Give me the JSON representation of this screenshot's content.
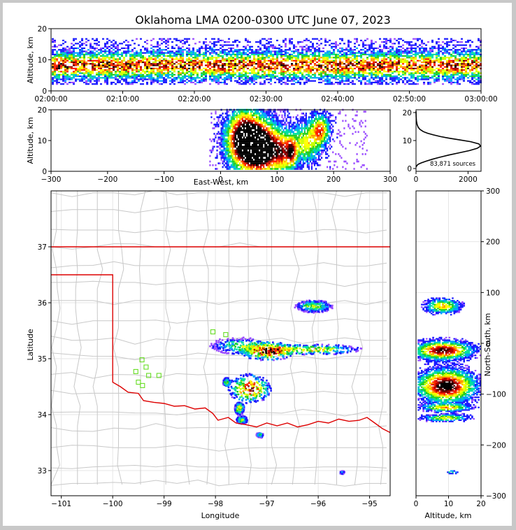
{
  "title": "Oklahoma LMA 0200-0300 UTC June 07, 2023",
  "colors": {
    "state_border": "#dd0000",
    "county_lines": "#c8c8c8",
    "stations": "#66dd22",
    "hist_line": "#000000"
  },
  "colormap": [
    "#ffffff",
    "#9a4dff",
    "#1a1aff",
    "#00a0ff",
    "#00e0a0",
    "#22cc22",
    "#c8ff00",
    "#ffff00",
    "#ff9900",
    "#ff2200",
    "#b00000",
    "#500000",
    "#000000"
  ],
  "chart_data": [
    {
      "id": "time_altitude",
      "type": "heatmap",
      "title": "",
      "xlabel": "",
      "ylabel": "Altitude, km",
      "x_ticks": [
        "02:00:00",
        "02:10:00",
        "02:20:00",
        "02:30:00",
        "02:40:00",
        "02:50:00",
        "03:00:00"
      ],
      "y_ticks": [
        "0",
        "10",
        "20"
      ],
      "xlim": [
        "02:00:00",
        "03:00:00"
      ],
      "ylim": [
        0,
        20
      ],
      "note": "continuous source band roughly 2-16 km, densest 5-11 km"
    },
    {
      "id": "ew_altitude",
      "type": "heatmap",
      "xlabel": "East-West, km",
      "ylabel": "Altitude, km",
      "x_ticks": [
        "−300",
        "−200",
        "−100",
        "0",
        "100",
        "200",
        "300"
      ],
      "y_ticks": [
        "0",
        "10",
        "20"
      ],
      "xlim": [
        -300,
        300
      ],
      "ylim": [
        0,
        20
      ],
      "clusters": [
        {
          "x": 50,
          "z": 8,
          "wx": 22,
          "wz": 5,
          "peak": 12
        },
        {
          "x": 75,
          "z": 7,
          "wx": 20,
          "wz": 5,
          "peak": 11
        },
        {
          "x": 40,
          "z": 12,
          "wx": 18,
          "wz": 5,
          "peak": 8
        },
        {
          "x": 110,
          "z": 6,
          "wx": 12,
          "wz": 4,
          "peak": 7
        },
        {
          "x": 150,
          "z": 9,
          "wx": 15,
          "wz": 4,
          "peak": 6
        },
        {
          "x": 175,
          "z": 13,
          "wx": 10,
          "wz": 3,
          "peak": 8
        },
        {
          "x": 125,
          "z": 6,
          "wx": 6,
          "wz": 3,
          "peak": 7
        }
      ]
    },
    {
      "id": "altitude_histogram",
      "type": "line",
      "xlabel": "",
      "ylabel": "",
      "x_ticks": [
        "0",
        "2000"
      ],
      "y_ticks": [
        "0",
        "10",
        "20"
      ],
      "xlim": [
        0,
        2500
      ],
      "ylim": [
        -1,
        21
      ],
      "annotation": "83,871 sources",
      "x": [
        0,
        30,
        80,
        200,
        380,
        620,
        900,
        1250,
        1650,
        2050,
        2350,
        2480,
        2420,
        2100,
        1700,
        1300,
        950,
        680,
        450,
        280,
        150,
        80,
        40,
        15,
        5,
        0
      ],
      "y": [
        0.5,
        1,
        1.5,
        2,
        2.6,
        3.3,
        4,
        4.8,
        5.6,
        6.4,
        7.2,
        8,
        8.8,
        9.6,
        10.2,
        10.8,
        11.4,
        12,
        12.6,
        13.2,
        14,
        14.8,
        15.8,
        17,
        18.5,
        20.5
      ]
    },
    {
      "id": "plan_map",
      "type": "heatmap",
      "xlabel": "Longitude",
      "ylabel": "Latitude",
      "x_ticks": [
        "−101",
        "−100",
        "−99",
        "−98",
        "−97",
        "−96",
        "−95"
      ],
      "y_ticks": [
        "33",
        "34",
        "35",
        "36",
        "37"
      ],
      "xlim": [
        -101.2,
        -94.6
      ],
      "ylim": [
        32.55,
        38.0
      ],
      "clusters": [
        {
          "lon": -97.0,
          "lat": 35.15,
          "wlon": 0.28,
          "wlat": 0.09,
          "peak": 11
        },
        {
          "lon": -96.1,
          "lat": 35.18,
          "wlon": 0.5,
          "wlat": 0.05,
          "peak": 8
        },
        {
          "lon": -97.6,
          "lat": 35.25,
          "wlon": 0.3,
          "wlat": 0.08,
          "peak": 5
        },
        {
          "lon": -97.35,
          "lat": 34.48,
          "wlon": 0.22,
          "wlat": 0.14,
          "peak": 11
        },
        {
          "lon": -96.1,
          "lat": 35.95,
          "wlon": 0.2,
          "wlat": 0.06,
          "peak": 7
        },
        {
          "lon": -97.55,
          "lat": 34.12,
          "wlon": 0.05,
          "wlat": 0.06,
          "peak": 8
        },
        {
          "lon": -97.5,
          "lat": 33.92,
          "wlon": 0.06,
          "wlat": 0.04,
          "peak": 7
        },
        {
          "lon": -97.8,
          "lat": 34.6,
          "wlon": 0.04,
          "wlat": 0.04,
          "peak": 6
        },
        {
          "lon": -97.15,
          "lat": 33.65,
          "wlon": 0.04,
          "wlat": 0.03,
          "peak": 5
        },
        {
          "lon": -95.55,
          "lat": 32.98,
          "wlon": 0.03,
          "wlat": 0.02,
          "peak": 4
        }
      ],
      "stations": [
        {
          "lon": -98.05,
          "lat": 35.48
        },
        {
          "lon": -97.8,
          "lat": 35.43
        },
        {
          "lon": -99.43,
          "lat": 34.98
        },
        {
          "lon": -99.35,
          "lat": 34.85
        },
        {
          "lon": -99.55,
          "lat": 34.77
        },
        {
          "lon": -99.3,
          "lat": 34.7
        },
        {
          "lon": -99.1,
          "lat": 34.7
        },
        {
          "lon": -99.5,
          "lat": 34.58
        },
        {
          "lon": -99.42,
          "lat": 34.52
        }
      ],
      "state_border": [
        [
          -101.2,
          37
        ],
        [
          -94.6,
          37
        ],
        [
          -101.2,
          36.5
        ],
        [
          -100,
          36.5
        ],
        [
          -100,
          34.58
        ],
        [
          -99.85,
          34.5
        ],
        [
          -99.7,
          34.4
        ],
        [
          -99.5,
          34.38
        ],
        [
          -99.4,
          34.25
        ],
        [
          -99.2,
          34.22
        ],
        [
          -99.0,
          34.2
        ],
        [
          -98.8,
          34.15
        ],
        [
          -98.6,
          34.16
        ],
        [
          -98.4,
          34.1
        ],
        [
          -98.2,
          34.12
        ],
        [
          -98.05,
          34.02
        ],
        [
          -97.95,
          33.9
        ],
        [
          -97.75,
          33.95
        ],
        [
          -97.6,
          33.85
        ],
        [
          -97.4,
          33.82
        ],
        [
          -97.2,
          33.78
        ],
        [
          -97.0,
          33.85
        ],
        [
          -96.8,
          33.8
        ],
        [
          -96.6,
          33.85
        ],
        [
          -96.4,
          33.78
        ],
        [
          -96.2,
          33.82
        ],
        [
          -96.0,
          33.88
        ],
        [
          -95.8,
          33.85
        ],
        [
          -95.6,
          33.92
        ],
        [
          -95.4,
          33.88
        ],
        [
          -95.2,
          33.9
        ],
        [
          -95.05,
          33.95
        ],
        [
          -94.9,
          33.85
        ],
        [
          -94.75,
          33.75
        ],
        [
          -94.6,
          33.68
        ]
      ]
    },
    {
      "id": "altitude_ns",
      "type": "heatmap",
      "xlabel": "Altitude, km",
      "ylabel": "North-South, km",
      "x_ticks": [
        "0",
        "10",
        "20"
      ],
      "y_ticks": [
        "−300",
        "−200",
        "−100",
        "0",
        "100",
        "200",
        "300"
      ],
      "xlim": [
        0,
        20
      ],
      "ylim": [
        -300,
        300
      ],
      "clusters": [
        {
          "z": 8,
          "y": -15,
          "wz": 5,
          "wy": 10,
          "peak": 11
        },
        {
          "z": 9,
          "y": -85,
          "wz": 5,
          "wy": 18,
          "peak": 12
        },
        {
          "z": 8,
          "y": 72,
          "wz": 3,
          "wy": 8,
          "peak": 7
        },
        {
          "z": 9,
          "y": -128,
          "wz": 4,
          "wy": 4,
          "peak": 7
        },
        {
          "z": 9,
          "y": -148,
          "wz": 4,
          "wy": 4,
          "peak": 6
        },
        {
          "z": 11,
          "y": -255,
          "wz": 1,
          "wy": 2,
          "peak": 4
        }
      ]
    }
  ]
}
